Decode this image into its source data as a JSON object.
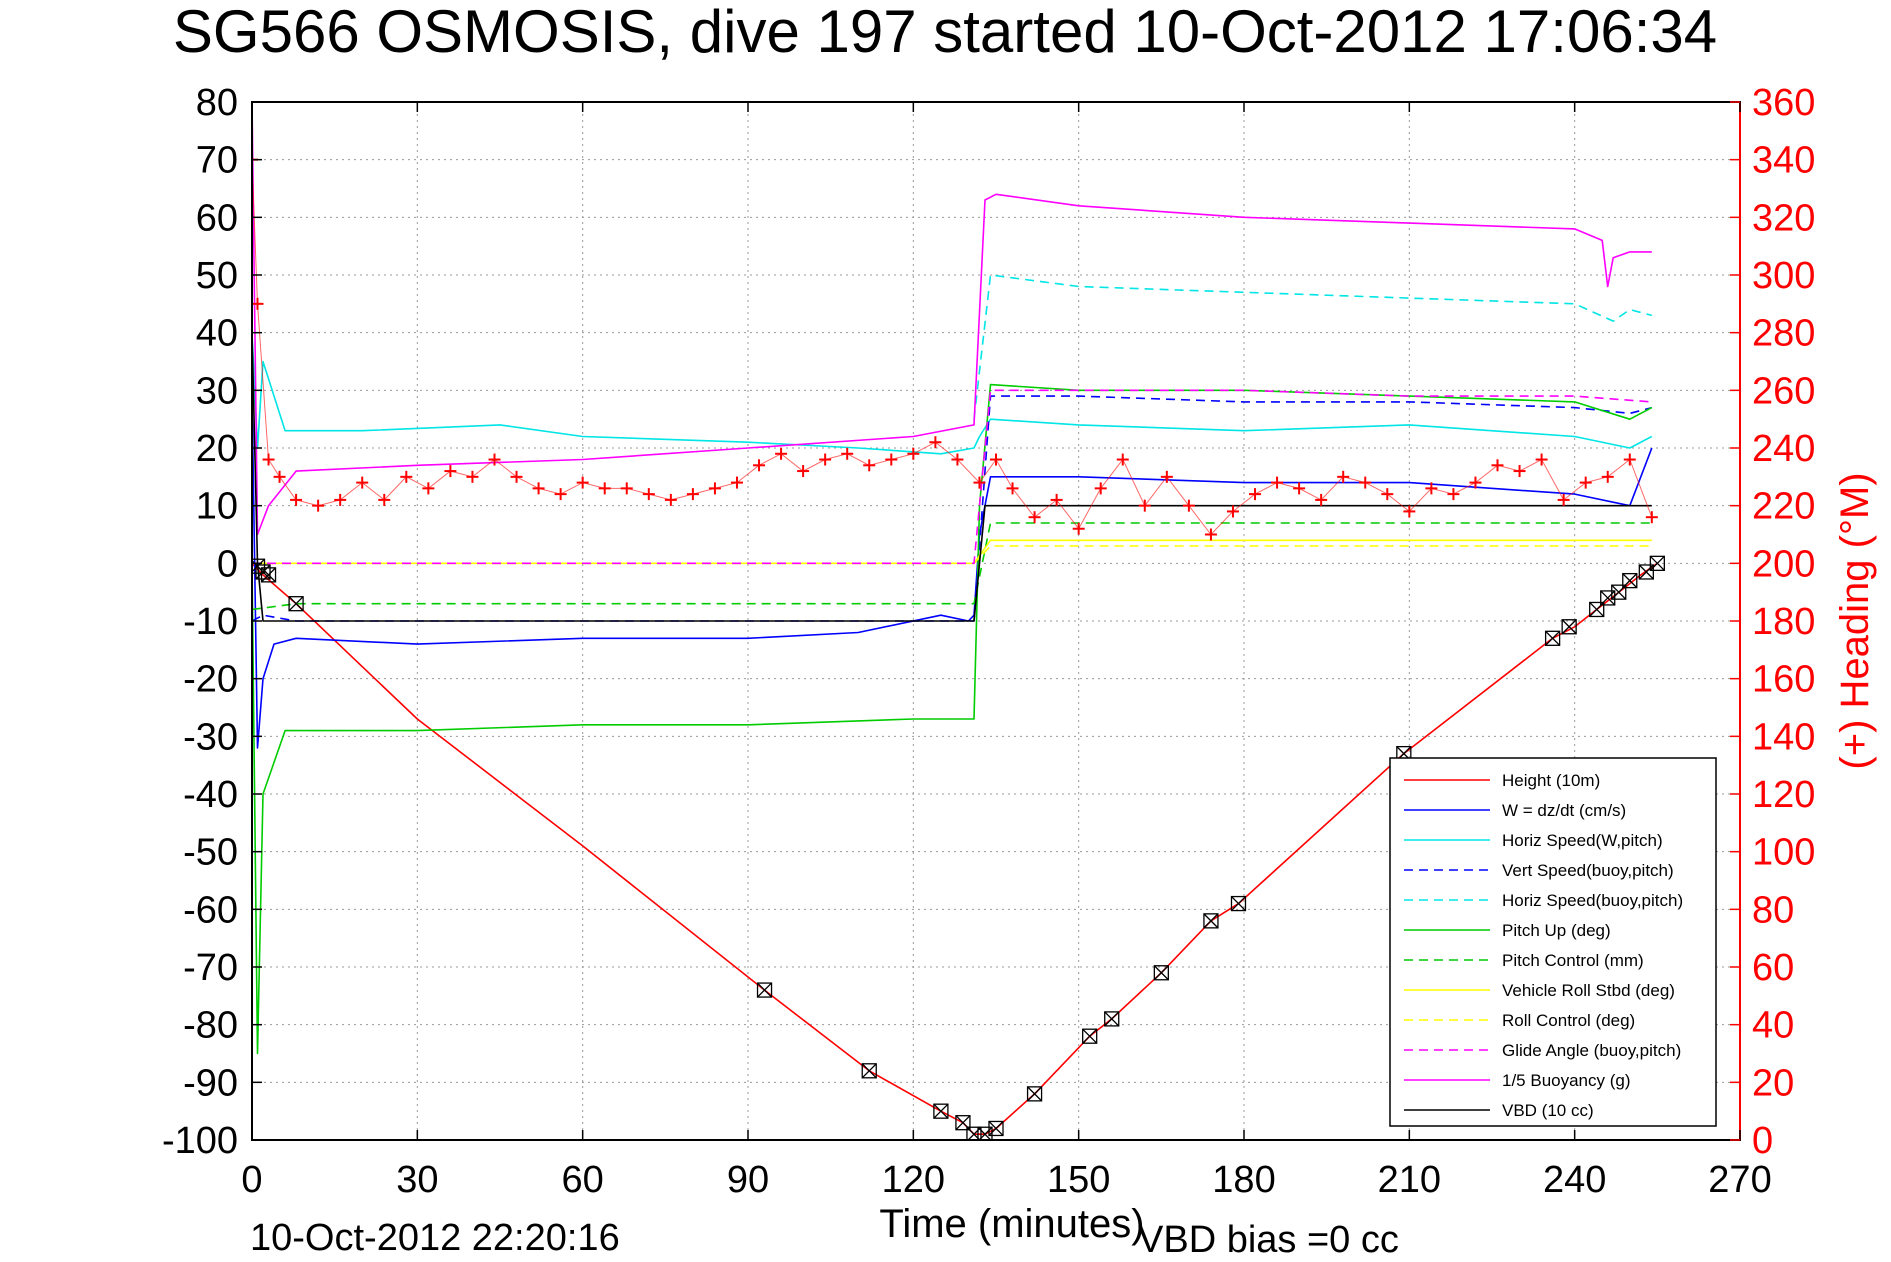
{
  "chart_data": {
    "type": "line",
    "title": "SG566 OSMOSIS, dive 197 started 10-Oct-2012 17:06:34",
    "xlabel": "Time (minutes)",
    "ylabel_right": "(+) Heading (°M)",
    "footer_left": "10-Oct-2012 22:20:16",
    "footer_right": "VBD bias =0 cc",
    "xlim": [
      0,
      270
    ],
    "ylim": [
      -100,
      80
    ],
    "ylim_right": [
      0,
      360
    ],
    "x_ticks": [
      0,
      30,
      60,
      90,
      120,
      150,
      180,
      210,
      240,
      270
    ],
    "y_ticks": [
      80,
      70,
      60,
      50,
      40,
      30,
      20,
      10,
      0,
      -10,
      -20,
      -30,
      -40,
      -50,
      -60,
      -70,
      -80,
      -90,
      -100
    ],
    "y_ticks_right": [
      360,
      340,
      320,
      300,
      280,
      260,
      240,
      220,
      200,
      180,
      160,
      140,
      120,
      100,
      80,
      60,
      40,
      20,
      0
    ],
    "grid": true,
    "legend_position": "bottom-right",
    "series": [
      {
        "name": "Height (10m)",
        "color": "#ff0000",
        "dash": "solid",
        "x": [
          0,
          2,
          8,
          30,
          60,
          93,
          112,
          125,
          129,
          131,
          133,
          135,
          142,
          152,
          156,
          165,
          174,
          179,
          209,
          236,
          240,
          244,
          248,
          252,
          255
        ],
        "y": [
          0,
          -2,
          -7,
          -27,
          -49,
          -74,
          -88,
          -95,
          -97,
          -99,
          -99,
          -98,
          -92,
          -82,
          -79,
          -71,
          -62,
          -59,
          -33,
          -13,
          -11,
          -8,
          -5,
          -2,
          0
        ]
      },
      {
        "name": "W = dz/dt (cm/s)",
        "color": "#0000ff",
        "dash": "solid",
        "x": [
          0,
          1,
          2,
          4,
          8,
          30,
          60,
          90,
          110,
          125,
          130,
          131,
          132,
          134,
          150,
          180,
          210,
          240,
          250,
          254
        ],
        "y": [
          30,
          -32,
          -20,
          -14,
          -13,
          -14,
          -13,
          -13,
          -12,
          -9,
          -10,
          -9,
          5,
          15,
          15,
          14,
          14,
          12,
          10,
          20
        ]
      },
      {
        "name": "Horiz Speed(W,pitch)",
        "color": "#00e5e5",
        "dash": "solid",
        "x": [
          0,
          1,
          2,
          6,
          20,
          45,
          60,
          90,
          110,
          125,
          131,
          132,
          134,
          150,
          180,
          210,
          240,
          250,
          254
        ],
        "y": [
          40,
          20,
          35,
          23,
          23,
          24,
          22,
          21,
          20,
          19,
          20,
          22,
          25,
          24,
          23,
          24,
          22,
          20,
          22
        ]
      },
      {
        "name": "Vert Speed(buoy,pitch)",
        "color": "#0000ff",
        "dash": "dashed",
        "x": [
          0,
          2,
          8,
          60,
          120,
          131,
          134,
          150,
          180,
          210,
          240,
          250,
          254
        ],
        "y": [
          -10,
          -9,
          -10,
          -10,
          -10,
          -10,
          29,
          29,
          28,
          28,
          27,
          26,
          27
        ]
      },
      {
        "name": "Horiz Speed(buoy,pitch)",
        "color": "#00e5e5",
        "dash": "dashed",
        "x": [
          131,
          134,
          150,
          180,
          210,
          240,
          247,
          250,
          254
        ],
        "y": [
          25,
          50,
          48,
          47,
          46,
          45,
          42,
          44,
          43
        ]
      },
      {
        "name": "Pitch Up (deg)",
        "color": "#00cc00",
        "dash": "solid",
        "x": [
          0,
          1,
          2,
          6,
          30,
          60,
          90,
          120,
          131,
          132,
          134,
          150,
          180,
          210,
          240,
          250,
          254
        ],
        "y": [
          0,
          -85,
          -40,
          -29,
          -29,
          -28,
          -28,
          -27,
          -27,
          10,
          31,
          30,
          30,
          29,
          28,
          25,
          27
        ]
      },
      {
        "name": "Pitch Control (mm)",
        "color": "#00cc00",
        "dash": "dashed",
        "x": [
          0,
          8,
          60,
          131,
          134,
          210,
          240,
          254
        ],
        "y": [
          -8,
          -7,
          -7,
          -7,
          7,
          7,
          7,
          7
        ]
      },
      {
        "name": "Vehicle Roll Stbd (deg)",
        "color": "#ffff00",
        "dash": "solid",
        "x": [
          0,
          3,
          8,
          60,
          131,
          134,
          210,
          240,
          254
        ],
        "y": [
          0,
          0,
          0,
          0,
          0,
          4,
          4,
          4,
          4
        ]
      },
      {
        "name": "Roll Control (deg)",
        "color": "#ffff00",
        "dash": "dashed",
        "x": [
          0,
          8,
          60,
          131,
          134,
          210,
          254
        ],
        "y": [
          0,
          0,
          0,
          0,
          3,
          3,
          3
        ]
      },
      {
        "name": "Glide Angle (buoy,pitch)",
        "color": "#ff00ff",
        "dash": "dashed",
        "x": [
          0,
          8,
          60,
          131,
          134,
          180,
          210,
          240,
          254
        ],
        "y": [
          0,
          0,
          0,
          0,
          30,
          30,
          29,
          29,
          28
        ]
      },
      {
        "name": "1/5 Buoyancy (g)",
        "color": "#ff00ff",
        "dash": "solid",
        "x": [
          0,
          1,
          3,
          8,
          30,
          60,
          90,
          120,
          131,
          133,
          135,
          150,
          180,
          210,
          240,
          245,
          246,
          247,
          250,
          254
        ],
        "y": [
          80,
          5,
          10,
          16,
          17,
          18,
          20,
          22,
          24,
          63,
          64,
          62,
          60,
          59,
          58,
          56,
          48,
          53,
          54,
          54
        ]
      },
      {
        "name": "VBD (10 cc)",
        "color": "#000000",
        "dash": "solid",
        "x": [
          0,
          1,
          2,
          131,
          133,
          240,
          250,
          254
        ],
        "y": [
          40,
          0,
          -10,
          -10,
          10,
          10,
          10,
          10
        ]
      }
    ],
    "heading_series": {
      "name": "(+) Heading (°M)",
      "axis": "right",
      "color": "#ff0000",
      "marker": "+",
      "x": [
        0,
        1,
        3,
        5,
        8,
        12,
        16,
        20,
        24,
        28,
        32,
        36,
        40,
        44,
        48,
        52,
        56,
        60,
        64,
        68,
        72,
        76,
        80,
        84,
        88,
        92,
        96,
        100,
        104,
        108,
        112,
        116,
        120,
        124,
        128,
        132,
        135,
        138,
        142,
        146,
        150,
        154,
        158,
        162,
        166,
        170,
        174,
        178,
        182,
        186,
        190,
        194,
        198,
        202,
        206,
        210,
        214,
        218,
        222,
        226,
        230,
        234,
        238,
        242,
        246,
        250,
        254
      ],
      "y": [
        340,
        290,
        236,
        230,
        222,
        220,
        222,
        228,
        222,
        230,
        226,
        232,
        230,
        236,
        230,
        226,
        224,
        228,
        226,
        226,
        224,
        222,
        224,
        226,
        228,
        234,
        238,
        232,
        236,
        238,
        234,
        236,
        238,
        242,
        236,
        228,
        236,
        226,
        216,
        222,
        212,
        226,
        236,
        220,
        230,
        220,
        210,
        218,
        224,
        228,
        226,
        222,
        230,
        228,
        224,
        218,
        226,
        224,
        228,
        234,
        232,
        236,
        222,
        228,
        230,
        236,
        216
      ]
    },
    "dive_markers": {
      "name": "Height (10m) data points",
      "marker": "boxed-x",
      "color": "#000000",
      "x": [
        1,
        2,
        3,
        8,
        93,
        112,
        125,
        129,
        131,
        133,
        135,
        142,
        152,
        156,
        165,
        174,
        179,
        209,
        236,
        239,
        244,
        246,
        248,
        250,
        253,
        255
      ],
      "y": [
        -0.5,
        -1.5,
        -2,
        -7,
        -74,
        -88,
        -95,
        -97,
        -99,
        -99,
        -98,
        -92,
        -82,
        -79,
        -71,
        -62,
        -59,
        -33,
        -13,
        -11,
        -8,
        -6,
        -5,
        -3,
        -1.5,
        0
      ]
    }
  }
}
